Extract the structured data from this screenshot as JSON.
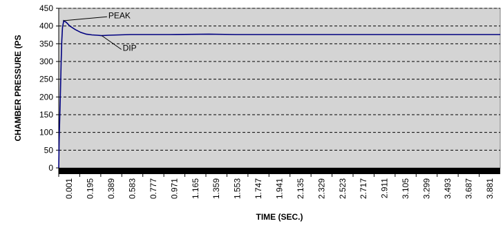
{
  "chart_data": {
    "type": "line",
    "title": "",
    "xlabel": "TIME (SEC.)",
    "ylabel": "CHAMBER PRESSURE (PS",
    "ylim": [
      0,
      450
    ],
    "yticks": [
      0,
      50,
      100,
      150,
      200,
      250,
      300,
      350,
      400,
      450
    ],
    "xlim": [
      0,
      4.0
    ],
    "xticks": [
      "0.001",
      "0.195",
      "0.389",
      "0.583",
      "0.777",
      "0.971",
      "1.165",
      "1.359",
      "1.553",
      "1.747",
      "1.941",
      "2.135",
      "2.329",
      "2.523",
      "2.717",
      "2.911",
      "3.105",
      "3.299",
      "3.493",
      "3.687",
      "3.881"
    ],
    "grid": "horizontal dashed",
    "legend": "none",
    "colors": {
      "line": "#000080",
      "plot_bg": "#d4d4d4",
      "floor": "#000000"
    },
    "series": [
      {
        "values": [
          {
            "x": 0.0,
            "y": 0
          },
          {
            "x": 0.004,
            "y": 80
          },
          {
            "x": 0.01,
            "y": 150
          },
          {
            "x": 0.016,
            "y": 220
          },
          {
            "x": 0.022,
            "y": 300
          },
          {
            "x": 0.028,
            "y": 360
          },
          {
            "x": 0.034,
            "y": 395
          },
          {
            "x": 0.045,
            "y": 415
          },
          {
            "x": 0.07,
            "y": 410
          },
          {
            "x": 0.1,
            "y": 400
          },
          {
            "x": 0.15,
            "y": 390
          },
          {
            "x": 0.2,
            "y": 382
          },
          {
            "x": 0.25,
            "y": 377
          },
          {
            "x": 0.3,
            "y": 375
          },
          {
            "x": 0.35,
            "y": 374
          },
          {
            "x": 0.389,
            "y": 373
          },
          {
            "x": 0.45,
            "y": 374
          },
          {
            "x": 0.55,
            "y": 375
          },
          {
            "x": 0.65,
            "y": 376
          },
          {
            "x": 0.777,
            "y": 376
          },
          {
            "x": 1.0,
            "y": 376
          },
          {
            "x": 1.359,
            "y": 377
          },
          {
            "x": 1.6,
            "y": 376
          },
          {
            "x": 2.0,
            "y": 376
          },
          {
            "x": 2.5,
            "y": 376
          },
          {
            "x": 3.0,
            "y": 376
          },
          {
            "x": 3.5,
            "y": 376
          },
          {
            "x": 4.0,
            "y": 376
          }
        ]
      }
    ],
    "annotations": [
      {
        "text": "PEAK",
        "x": 0.04,
        "y": 415,
        "label_x": 0.45,
        "label_y": 430
      },
      {
        "text": "DIP",
        "x": 0.389,
        "y": 373,
        "label_x": 0.58,
        "label_y": 338
      }
    ]
  }
}
